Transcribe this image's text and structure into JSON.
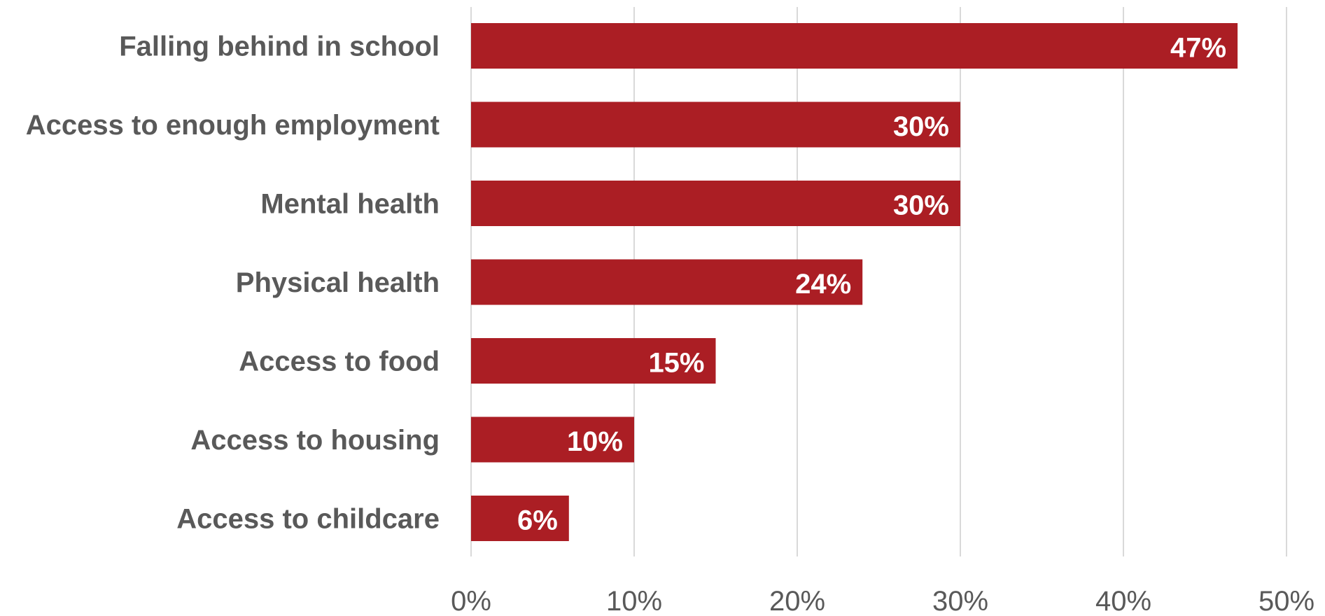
{
  "chart_data": {
    "type": "bar",
    "orientation": "horizontal",
    "categories": [
      "Falling behind in school",
      "Access to enough employment",
      "Mental health",
      "Physical health",
      "Access to food",
      "Access to housing",
      "Access to childcare"
    ],
    "values": [
      47,
      30,
      30,
      24,
      15,
      10,
      6
    ],
    "data_labels": [
      "47%",
      "30%",
      "30%",
      "24%",
      "15%",
      "10%",
      "6%"
    ],
    "title": "",
    "xlabel": "",
    "ylabel": "",
    "xlim": [
      0,
      50
    ],
    "x_ticks": [
      0,
      10,
      20,
      30,
      40,
      50
    ],
    "x_tick_labels": [
      "0%",
      "10%",
      "20%",
      "30%",
      "40%",
      "50%"
    ],
    "grid": true,
    "legend": "none",
    "bar_color": "#ab1e24",
    "label_color": "#595959",
    "data_label_color": "#ffffff",
    "grid_color": "#d9d9d9"
  }
}
